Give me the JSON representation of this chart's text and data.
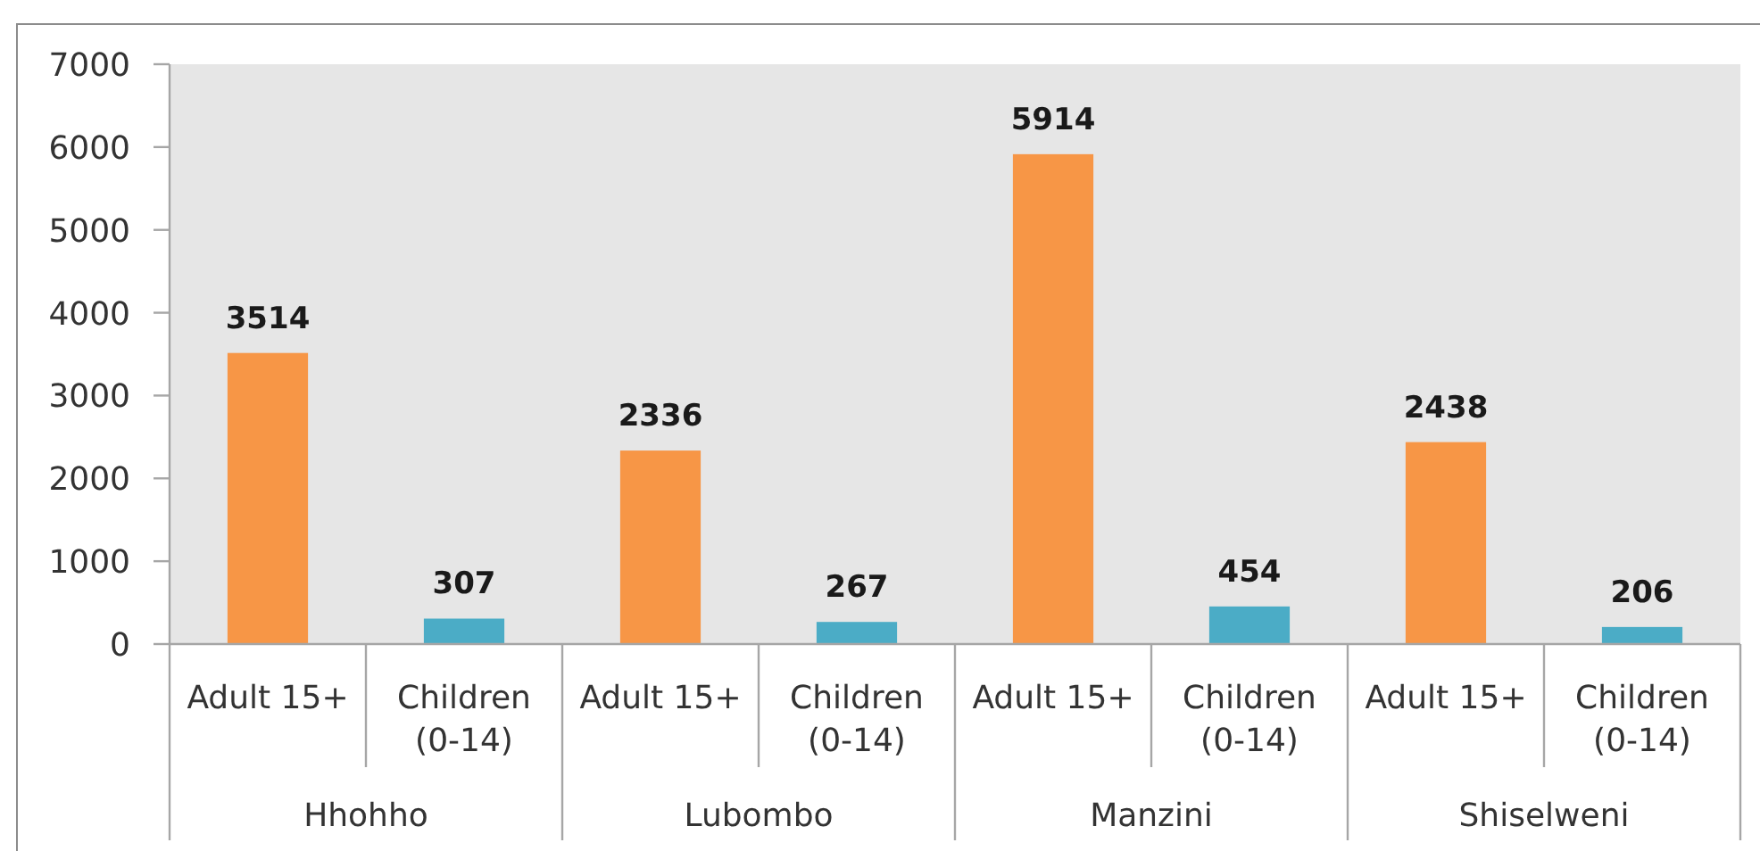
{
  "chart_data": {
    "type": "bar",
    "categories": [
      "Adult 15+",
      "Children (0-14)",
      "Adult 15+",
      "Children (0-14)",
      "Adult 15+",
      "Children (0-14)",
      "Adult 15+",
      "Children (0-14)"
    ],
    "values": [
      3514,
      307,
      2336,
      267,
      5914,
      454,
      2438,
      206
    ],
    "colors": [
      "#f79646",
      "#4bacc6",
      "#f79646",
      "#4bacc6",
      "#f79646",
      "#4bacc6",
      "#f79646",
      "#4bacc6"
    ],
    "ylim": [
      0,
      7000
    ],
    "yticks": [
      0,
      1000,
      2000,
      3000,
      4000,
      5000,
      6000,
      7000
    ],
    "data_labels": true,
    "annotations": [
      "Hhohho",
      "Lubombo",
      "Manzini",
      "Shiselweni"
    ]
  }
}
